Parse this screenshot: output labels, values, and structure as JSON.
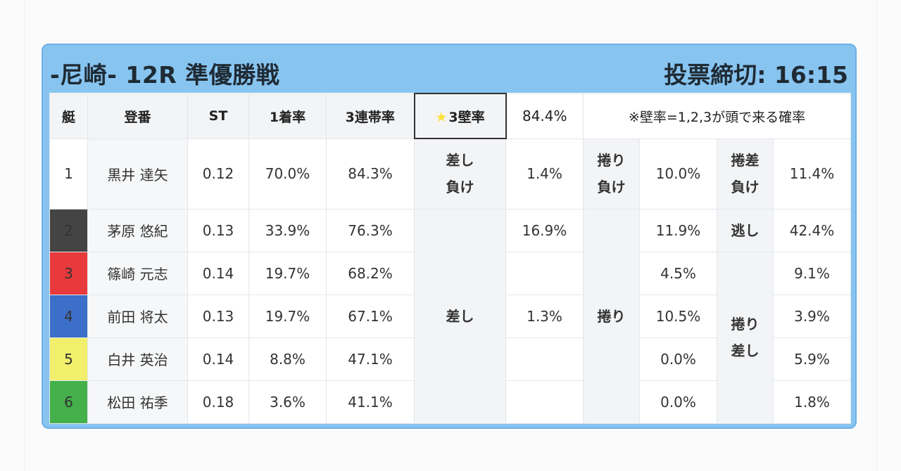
{
  "header": {
    "title": "-尼崎- 12R 準優勝戦",
    "deadline": "投票締切: 16:15"
  },
  "columns": {
    "boat": "艇",
    "name": "登番",
    "st": "ST",
    "first_rate": "1着率",
    "top3_rate": "3連帯率",
    "wall_label": "3壁率",
    "wall_value": "84.4%",
    "note": "※壁率=1,2,3が頭で来る確率"
  },
  "racers": [
    {
      "boat": "1",
      "name": "黒井 達矢",
      "st": "0.12",
      "first": "70.0%",
      "top3": "84.3%"
    },
    {
      "boat": "2",
      "name": "茅原 悠紀",
      "st": "0.13",
      "first": "33.9%",
      "top3": "76.3%"
    },
    {
      "boat": "3",
      "name": "篠崎 元志",
      "st": "0.14",
      "first": "19.7%",
      "top3": "68.2%"
    },
    {
      "boat": "4",
      "name": "前田 将太",
      "st": "0.13",
      "first": "19.7%",
      "top3": "67.1%"
    },
    {
      "boat": "5",
      "name": "白井 英治",
      "st": "0.14",
      "first": "8.8%",
      "top3": "47.1%"
    },
    {
      "boat": "6",
      "name": "松田 祐季",
      "st": "0.18",
      "first": "3.6%",
      "top3": "41.1%"
    }
  ],
  "patterns": {
    "sashi_make": {
      "label_1": "差し",
      "label_2": "負け",
      "value": "1.4%"
    },
    "makuri_make": {
      "label_1": "捲り",
      "label_2": "負け",
      "value": "10.0%"
    },
    "makurizashi_make": {
      "label_1": "捲差",
      "label_2": "負け",
      "value": "11.4%"
    },
    "sashi": {
      "label": "差し",
      "values": [
        "16.9%",
        "",
        "1.3%",
        "",
        ""
      ]
    },
    "makuri": {
      "label": "捲り",
      "values": [
        "11.9%",
        "4.5%",
        "10.5%",
        "0.0%",
        "0.0%"
      ]
    },
    "nige": {
      "label": "逃し",
      "value": "42.4%"
    },
    "makurizashi": {
      "label_1": "捲り",
      "label_2": "差し",
      "values": [
        "9.1%",
        "3.9%",
        "5.9%",
        "1.8%"
      ]
    }
  },
  "colors": {
    "panel": "#87c4f0",
    "wall_header": "#f0a319",
    "boat_1": "#ffffff",
    "boat_2": "#444444",
    "boat_3": "#e8393c",
    "boat_4": "#3b6fc8",
    "boat_5": "#f1ef6b",
    "boat_6": "#43b04a"
  }
}
